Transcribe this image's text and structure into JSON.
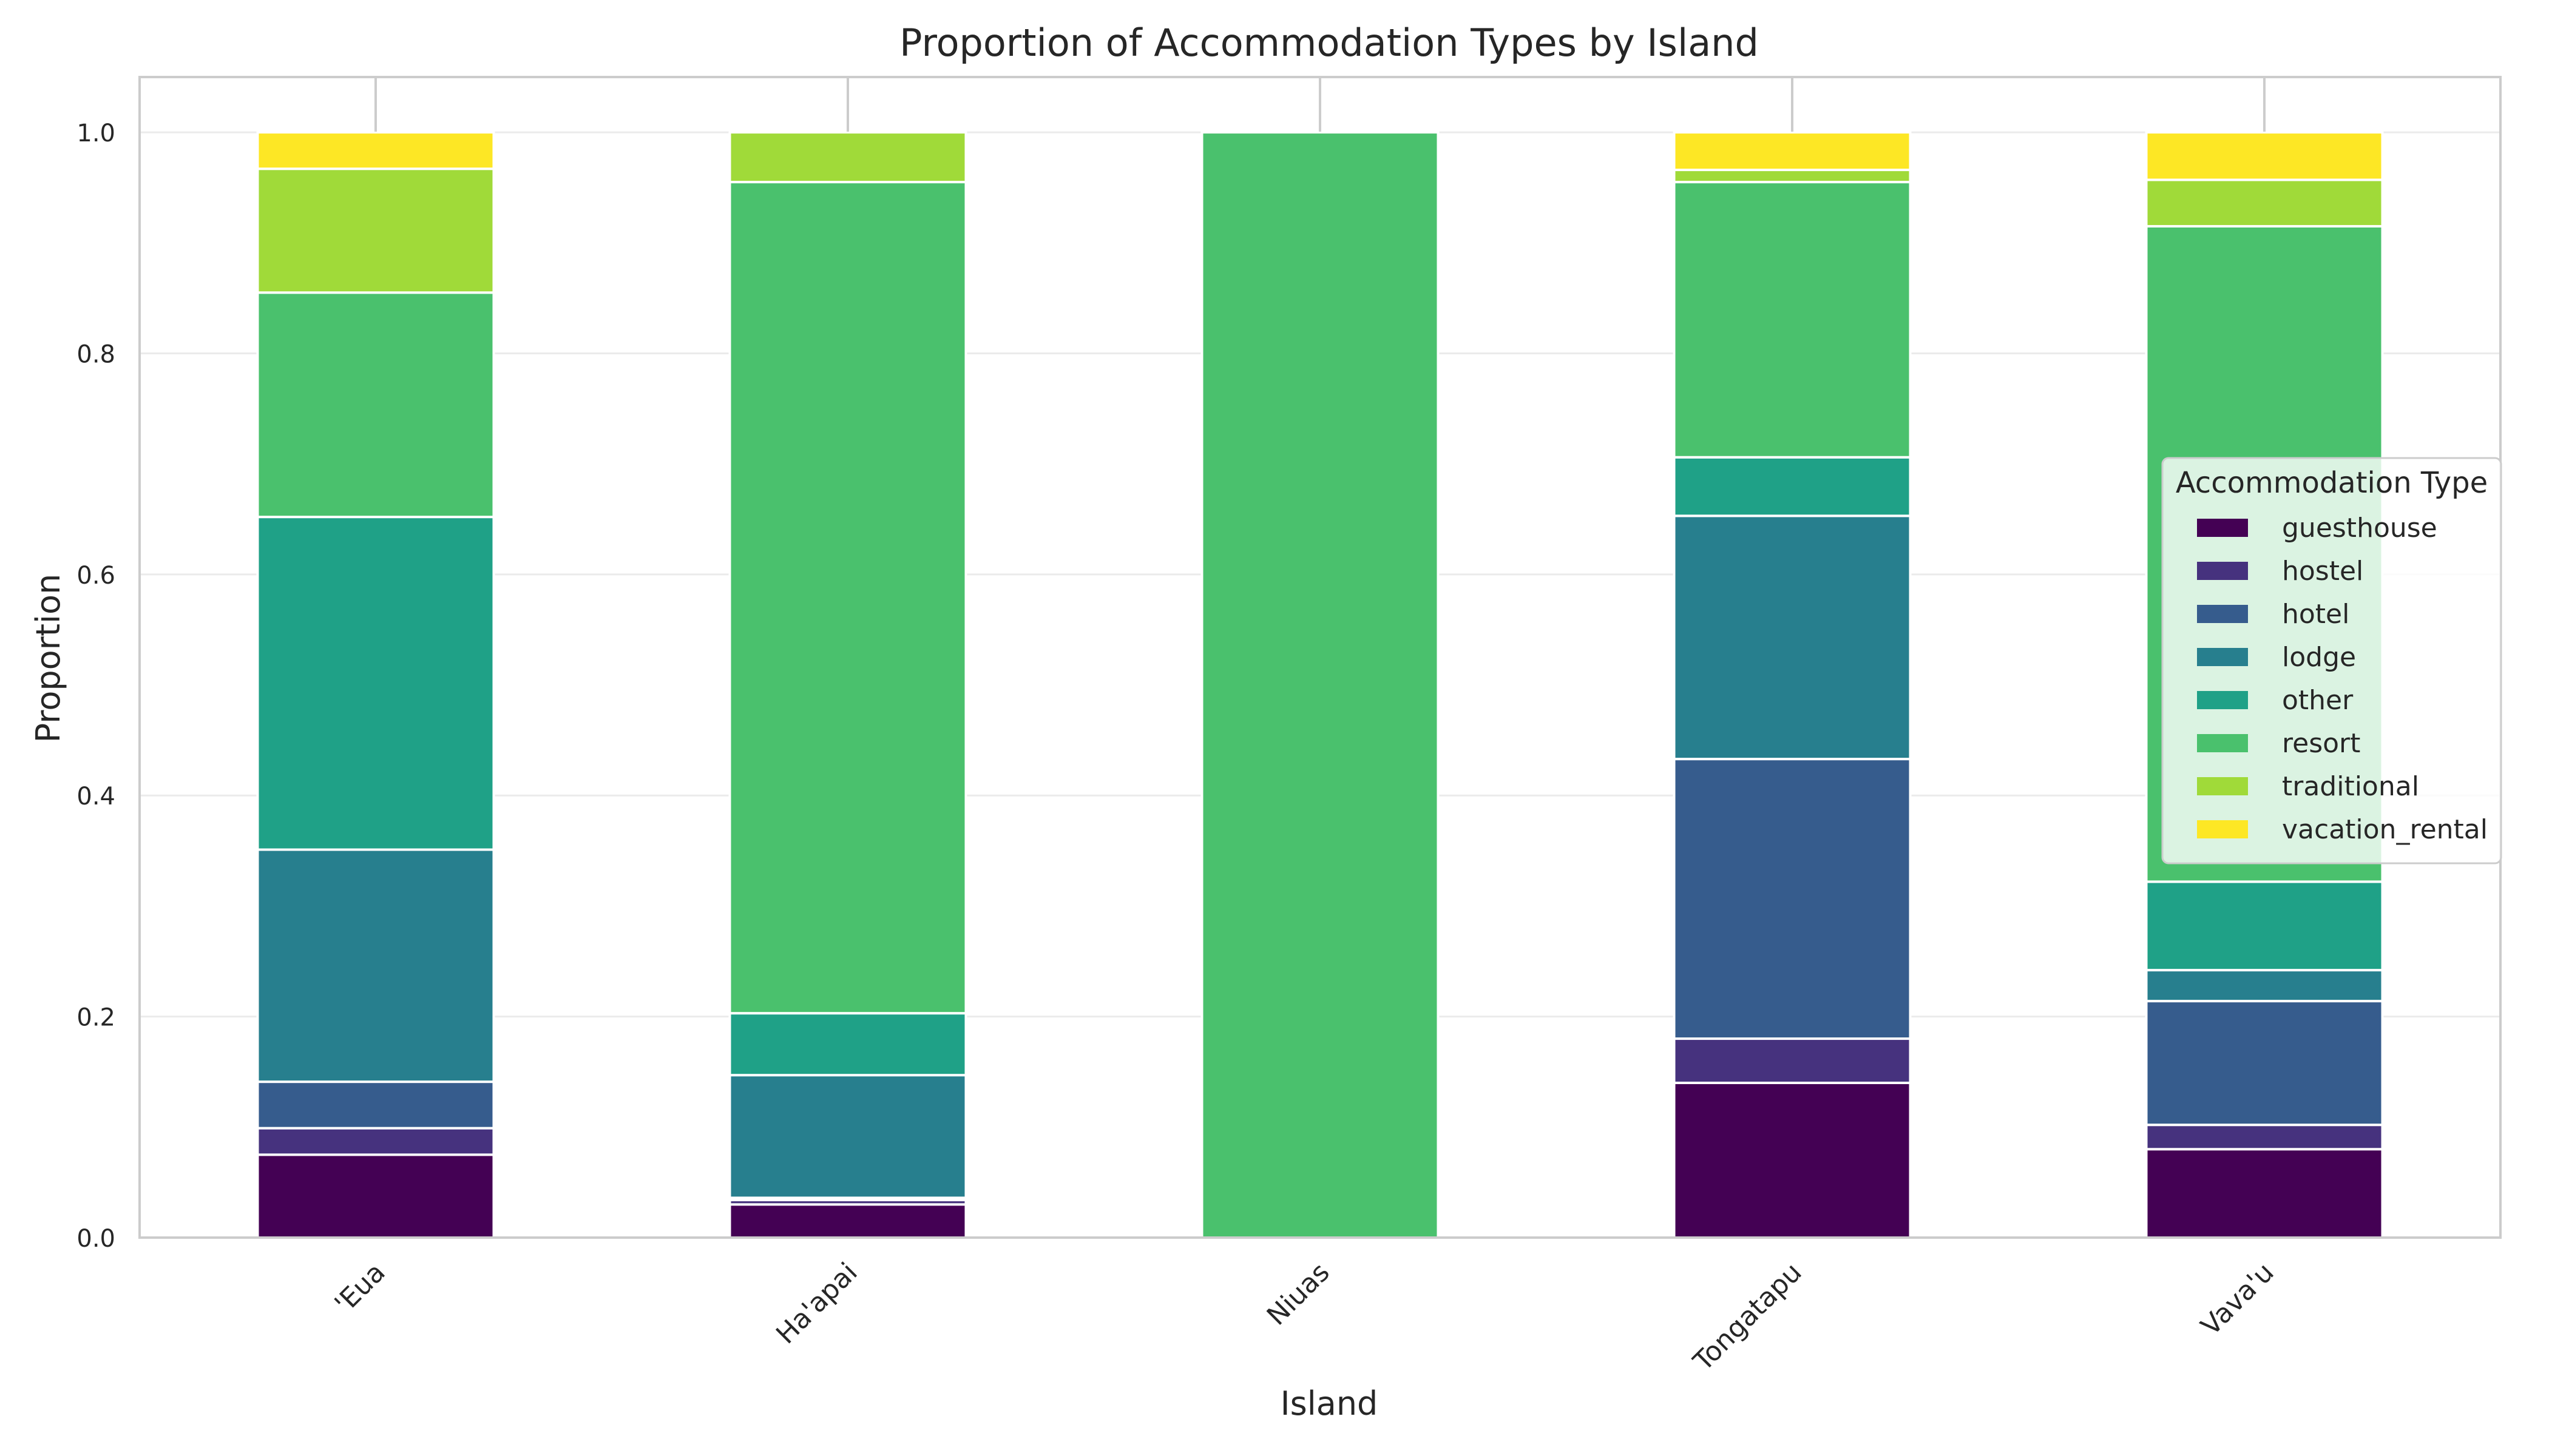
{
  "chart_data": {
    "type": "bar",
    "stacked": true,
    "title": "Proportion of Accommodation Types by Island",
    "xlabel": "Island",
    "ylabel": "Proportion",
    "ylim": [
      0,
      1.05
    ],
    "yticks": [
      "0.0",
      "0.2",
      "0.4",
      "0.6",
      "0.8",
      "1.0"
    ],
    "grid": true,
    "categories": [
      "'Eua",
      "Ha'apai",
      "Niuas",
      "Tongatapu",
      "Vava'u"
    ],
    "legend": {
      "title": "Accommodation Type",
      "position": "center-right"
    },
    "series": [
      {
        "name": "guesthouse",
        "color": "#440154",
        "values": [
          0.075,
          0.03,
          0.0,
          0.14,
          0.08
        ]
      },
      {
        "name": "hostel",
        "color": "#46327e",
        "values": [
          0.024,
          0.004,
          0.0,
          0.04,
          0.022
        ]
      },
      {
        "name": "hotel",
        "color": "#365c8d",
        "values": [
          0.042,
          0.002,
          0.0,
          0.253,
          0.112
        ]
      },
      {
        "name": "lodge",
        "color": "#277f8e",
        "values": [
          0.21,
          0.111,
          0.0,
          0.22,
          0.028
        ]
      },
      {
        "name": "other",
        "color": "#1fa187",
        "values": [
          0.301,
          0.056,
          0.0,
          0.053,
          0.08
        ]
      },
      {
        "name": "resort",
        "color": "#4ac16d",
        "values": [
          0.203,
          0.752,
          1.0,
          0.249,
          0.593
        ]
      },
      {
        "name": "traditional",
        "color": "#a0da39",
        "values": [
          0.112,
          0.045,
          0.0,
          0.011,
          0.042
        ]
      },
      {
        "name": "vacation_rental",
        "color": "#fde725",
        "values": [
          0.033,
          0.0,
          0.0,
          0.034,
          0.043
        ]
      }
    ]
  }
}
